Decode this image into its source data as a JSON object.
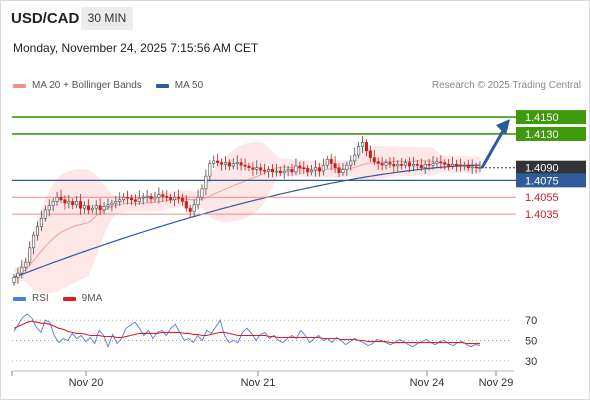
{
  "header": {
    "symbol": "USD/CAD",
    "timeframe": "30 MIN",
    "datetime": "Monday, November 24, 2025 7:15:56 AM CET",
    "credit": "Research © 2025 Trading Central"
  },
  "legend": {
    "items": [
      {
        "label": "MA 20 + Bollinger Bands",
        "color": "#f08c8c"
      },
      {
        "label": "MA 50",
        "color": "#2f5a9c"
      }
    ]
  },
  "rsi_legend": {
    "items": [
      {
        "label": "RSI",
        "color": "#4f7ddb"
      },
      {
        "label": "9MA",
        "color": "#e02020"
      }
    ]
  },
  "colors": {
    "up_candle": "#4a4a4a",
    "down_candle": "#c81e1e",
    "resistance": "#3e9a0c",
    "support_main": "#2f5a9c",
    "support": "#f08c8c",
    "current": "#333333",
    "band_fill": "#fde4e4",
    "arrow": "#2a5aa0"
  },
  "chart_data": [
    {
      "type": "candlestick",
      "title": "USD/CAD 30 MIN",
      "x": [
        "Nov 20",
        "Nov 21",
        "Nov 24",
        "Nov 29"
      ],
      "ylim": [
        1.3945,
        1.4175
      ],
      "current_price": 1.409,
      "levels": [
        {
          "value": 1.415,
          "label": "1.4150",
          "kind": "resistance"
        },
        {
          "value": 1.413,
          "label": "1.4130",
          "kind": "resistance"
        },
        {
          "value": 1.409,
          "label": "1.4090",
          "kind": "current"
        },
        {
          "value": 1.4075,
          "label": "1.4075",
          "kind": "pivot"
        },
        {
          "value": 1.4055,
          "label": "1.4055",
          "kind": "support"
        },
        {
          "value": 1.4035,
          "label": "1.4035",
          "kind": "support"
        }
      ],
      "close_series": [
        1.396,
        1.3965,
        1.3972,
        1.3978,
        1.3995,
        1.401,
        1.402,
        1.403,
        1.404,
        1.4045,
        1.405,
        1.4055,
        1.4052,
        1.4048,
        1.405,
        1.4046,
        1.405,
        1.4042,
        1.4045,
        1.404,
        1.4042,
        1.4045,
        1.404,
        1.4044,
        1.4046,
        1.4048,
        1.405,
        1.4052,
        1.4055,
        1.4054,
        1.4052,
        1.405,
        1.4054,
        1.4055,
        1.4056,
        1.4053,
        1.4055,
        1.4058,
        1.4056,
        1.4055,
        1.4052,
        1.4055,
        1.4054,
        1.405,
        1.4042,
        1.4038,
        1.4046,
        1.4055,
        1.4065,
        1.408,
        1.4095,
        1.4098,
        1.4096,
        1.4094,
        1.4096,
        1.4092,
        1.4095,
        1.4096,
        1.4093,
        1.4092,
        1.409,
        1.4088,
        1.409,
        1.4087,
        1.4086,
        1.4088,
        1.4085,
        1.4086,
        1.4084,
        1.4086,
        1.4088,
        1.4085,
        1.4092,
        1.409,
        1.4089,
        1.4085,
        1.4087,
        1.409,
        1.4086,
        1.4093,
        1.41,
        1.4095,
        1.409,
        1.4084,
        1.4088,
        1.4093,
        1.4098,
        1.4105,
        1.4115,
        1.412,
        1.411,
        1.4102,
        1.4097,
        1.4095,
        1.4093,
        1.4096,
        1.4094,
        1.4092,
        1.4094,
        1.4093,
        1.4096,
        1.4092,
        1.4094,
        1.4093,
        1.409,
        1.4094,
        1.4093,
        1.4095,
        1.4097,
        1.4096,
        1.4094,
        1.4092,
        1.4094,
        1.4093,
        1.4092,
        1.4093,
        1.409,
        1.4091,
        1.409,
        1.409
      ],
      "ma50_start": 1.396,
      "ma50_end": 1.4093,
      "projection": {
        "from": 1.409,
        "to": 1.415
      }
    },
    {
      "type": "line",
      "title": "RSI",
      "yticks": [
        70,
        50,
        30
      ],
      "ylim": [
        25,
        80
      ],
      "series": [
        {
          "name": "RSI",
          "values": [
            59,
            66,
            73,
            76,
            72,
            63,
            58,
            70,
            68,
            55,
            48,
            52,
            50,
            57,
            52,
            55,
            49,
            53,
            47,
            60,
            55,
            44,
            56,
            47,
            52,
            62,
            65,
            68,
            62,
            55,
            60,
            52,
            58,
            60,
            55,
            62,
            66,
            58,
            50,
            52,
            48,
            55,
            50,
            60,
            57,
            63,
            70,
            55,
            48,
            50,
            48,
            58,
            62,
            57,
            50,
            56,
            58,
            52,
            55,
            50,
            48,
            52,
            55,
            52,
            60,
            55,
            48,
            52,
            55,
            50,
            52,
            48,
            53,
            50,
            46,
            49,
            52,
            50,
            48,
            45,
            47,
            51,
            50,
            48,
            46,
            48,
            51,
            49,
            46,
            44,
            47,
            49,
            51,
            48,
            46,
            49,
            50,
            47,
            45,
            48,
            49,
            46,
            44,
            46,
            45
          ]
        },
        {
          "name": "9MA",
          "values": [
            62,
            64,
            66,
            68,
            69,
            68,
            67,
            67,
            66,
            64,
            62,
            61,
            59,
            58,
            57,
            57,
            56,
            55,
            55,
            55,
            54,
            54,
            54,
            53,
            53,
            54,
            55,
            56,
            57,
            57,
            57,
            57,
            57,
            58,
            58,
            58,
            58,
            58,
            57,
            57,
            56,
            56,
            55,
            55,
            56,
            57,
            58,
            58,
            57,
            56,
            55,
            55,
            55,
            55,
            55,
            55,
            55,
            54,
            54,
            53,
            53,
            53,
            53,
            53,
            53,
            53,
            53,
            53,
            53,
            52,
            52,
            52,
            52,
            51,
            51,
            51,
            51,
            50,
            50,
            49,
            49,
            49,
            49,
            49,
            48,
            48,
            48,
            48,
            48,
            48,
            48,
            48,
            48,
            48,
            48,
            48,
            48,
            48,
            48,
            48,
            48,
            47,
            47,
            47,
            47
          ]
        }
      ]
    }
  ],
  "x_axis": {
    "labels": [
      "Nov 20",
      "Nov 21",
      "Nov 24",
      "Nov 29"
    ]
  }
}
